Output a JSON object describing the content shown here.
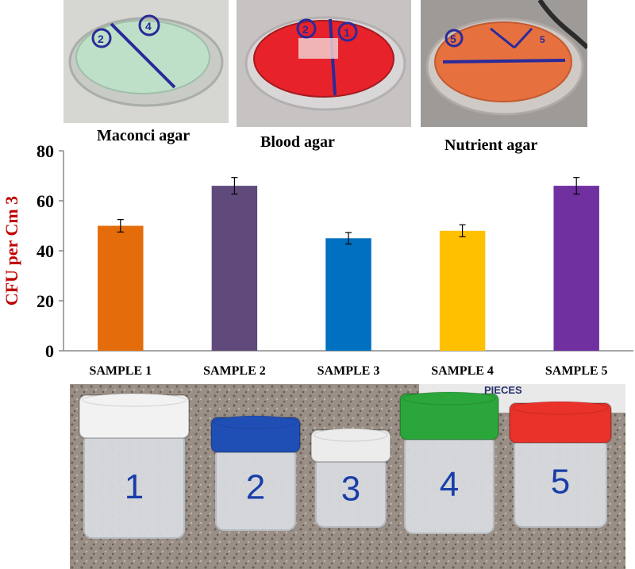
{
  "photos": {
    "plates": [
      {
        "label": "Maconci agar",
        "plate_color": "#bfe0c8",
        "marks": [
          "2",
          "4"
        ]
      },
      {
        "label": "Blood agar",
        "plate_color": "#e8222a",
        "marks": [
          "2",
          "1"
        ]
      },
      {
        "label": "Nutrient agar",
        "plate_color": "#e6713f",
        "marks": [
          "5",
          "5"
        ]
      }
    ],
    "containers": [
      {
        "number": "1",
        "cap_color": "#f2f2f2"
      },
      {
        "number": "2",
        "cap_color": "#1f4fb5"
      },
      {
        "number": "3",
        "cap_color": "#ececec"
      },
      {
        "number": "4",
        "cap_color": "#2aa63a"
      },
      {
        "number": "5",
        "cap_color": "#e8322a"
      }
    ],
    "box_text": "PIECES"
  },
  "chart_data": {
    "type": "bar",
    "title": "",
    "xlabel": "",
    "ylabel": "CFU per Cm 3",
    "ylabel_color": "#c00000",
    "categories": [
      "SAMPLE 1",
      "SAMPLE 2",
      "SAMPLE 3",
      "SAMPLE 4",
      "SAMPLE 5"
    ],
    "values": [
      50,
      66,
      45,
      48,
      66
    ],
    "errors": [
      2.5,
      3.3,
      2.3,
      2.4,
      3.3
    ],
    "colors": [
      "#e46c0a",
      "#604a7b",
      "#0070c0",
      "#ffc000",
      "#7030a0"
    ],
    "ylim": [
      0,
      80
    ],
    "yticks": [
      "0",
      "20",
      "40",
      "60",
      "80"
    ],
    "grid": false,
    "legend": "none"
  }
}
